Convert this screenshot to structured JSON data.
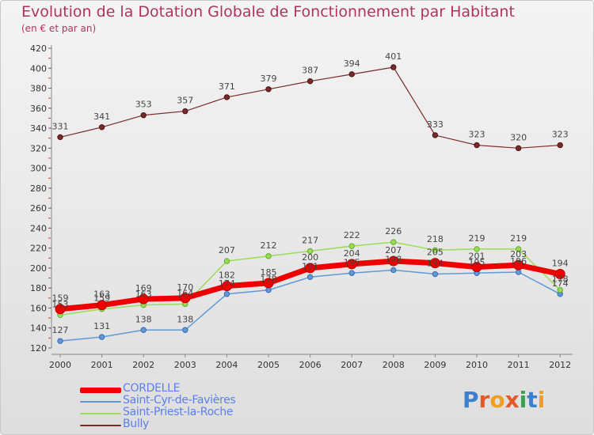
{
  "title": "Evolution de la Dotation Globale de Fonctionnement par Habitant",
  "subtitle": "(en € et par an)",
  "logo": {
    "text": "Proxiti",
    "letters": [
      {
        "ch": "P",
        "color": "#3a7fd0"
      },
      {
        "ch": "r",
        "color": "#e05a2a"
      },
      {
        "ch": "o",
        "color": "#f0a020"
      },
      {
        "ch": "x",
        "color": "#e05a2a"
      },
      {
        "ch": "i",
        "color": "#3aa050"
      },
      {
        "ch": "t",
        "color": "#3a7fd0"
      },
      {
        "ch": "i",
        "color": "#f0a020"
      }
    ]
  },
  "chart_data": {
    "type": "line",
    "title": "Evolution de la Dotation Globale de Fonctionnement par Habitant",
    "ylabel": "(en € et par an)",
    "xlabel": "",
    "x": [
      "2000",
      "2001",
      "2002",
      "2003",
      "2004",
      "2005",
      "2006",
      "2007",
      "2008",
      "2009",
      "2010",
      "2011",
      "2012"
    ],
    "ylim": [
      120,
      420
    ],
    "yticks": [
      120,
      140,
      160,
      180,
      200,
      220,
      240,
      260,
      280,
      300,
      320,
      340,
      360,
      380,
      400,
      420
    ],
    "grid": false,
    "legend": "bottom-left",
    "series": [
      {
        "name": "CORDELLE",
        "color": "#ee0000",
        "width": 7,
        "marker": 6,
        "values": [
          159,
          163,
          169,
          170,
          182,
          185,
          200,
          204,
          207,
          205,
          201,
          203,
          194
        ],
        "labels": [
          "159",
          "163",
          "169",
          "170",
          "182",
          "185",
          "200",
          "204",
          "207",
          "205",
          "201",
          "203",
          "194"
        ]
      },
      {
        "name": "Saint-Cyr-de-Favières",
        "color": "#5f9ad6",
        "width": 1.5,
        "marker": 3.2,
        "values": [
          127,
          131,
          138,
          138,
          174,
          178,
          191,
          195,
          198,
          194,
          195,
          196,
          174
        ],
        "labels": [
          "127",
          "131",
          "138",
          "138",
          "174",
          "178",
          "191",
          "195",
          "198",
          "194",
          "195",
          "196",
          "174"
        ]
      },
      {
        "name": "Saint-Priest-la-Roche",
        "color": "#99dd55",
        "width": 1.5,
        "marker": 3.2,
        "values": [
          153,
          159,
          163,
          164,
          207,
          212,
          217,
          222,
          226,
          218,
          219,
          219,
          178
        ],
        "labels": [
          "153",
          "159",
          "163",
          "164",
          "207",
          "212",
          "217",
          "222",
          "226",
          "218",
          "219",
          "219",
          "178"
        ]
      },
      {
        "name": "Bully",
        "color": "#7a2a2a",
        "width": 1.2,
        "marker": 3.2,
        "values": [
          331,
          341,
          353,
          357,
          371,
          379,
          387,
          394,
          401,
          333,
          323,
          320,
          323
        ],
        "labels": [
          "331",
          "341",
          "353",
          "357",
          "371",
          "379",
          "387",
          "394",
          "401",
          "333",
          "323",
          "320",
          "323"
        ]
      }
    ]
  }
}
